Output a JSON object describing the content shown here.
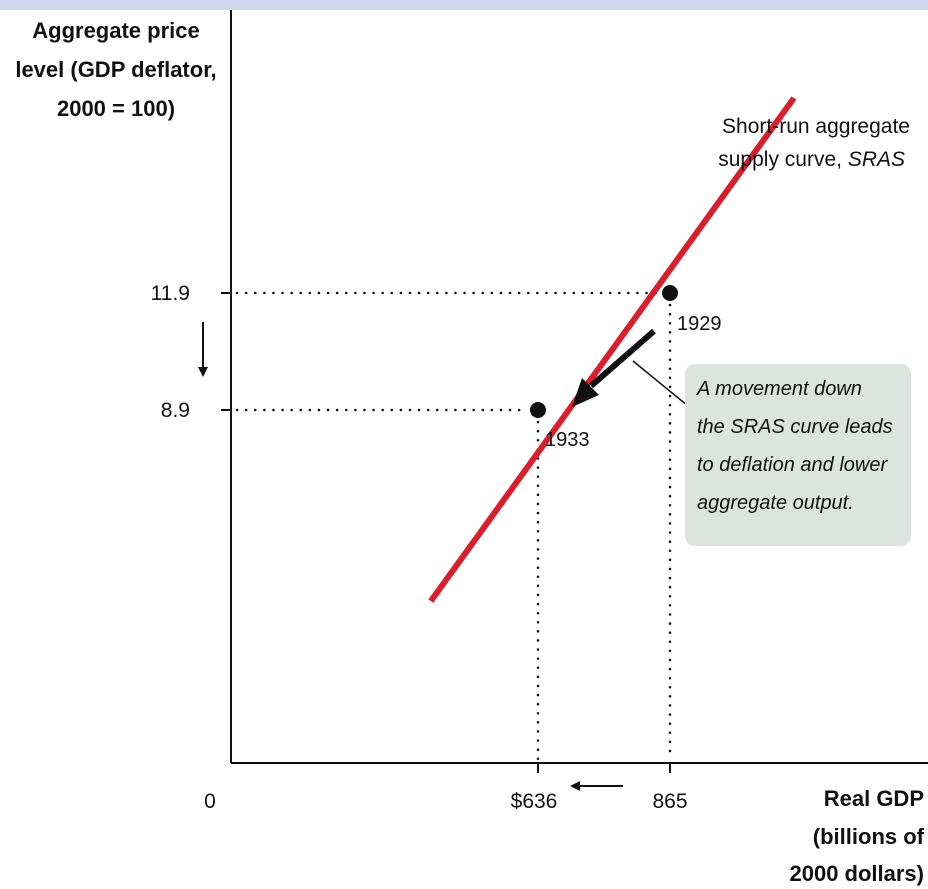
{
  "chart_data": {
    "type": "line",
    "ylabel": [
      "Aggregate price",
      "level (GDP deflator,",
      "2000 = 100)"
    ],
    "xlabel": [
      "Real GDP",
      "(billions of",
      "2000 dollars)"
    ],
    "origin_label": "0",
    "x_ticks": [
      {
        "value": 636,
        "label": "$636"
      },
      {
        "value": 865,
        "label": "865"
      }
    ],
    "y_ticks": [
      {
        "value": 8.9,
        "label": "8.9"
      },
      {
        "value": 11.9,
        "label": "11.9"
      }
    ],
    "series": [
      {
        "name": "SRAS",
        "color": "#d81f2e",
        "x": [
          450,
          1080
        ],
        "y": [
          4.0,
          16.9
        ]
      }
    ],
    "points": [
      {
        "year": "1929",
        "x": 865,
        "y": 11.9
      },
      {
        "year": "1933",
        "x": 636,
        "y": 8.9
      }
    ],
    "curve_label": {
      "line1": "Short-run aggregate",
      "line2_prefix": "supply curve, ",
      "line2_emph": "SRAS"
    },
    "callout": {
      "lines": [
        "A movement down",
        "the SRAS curve leads",
        "to deflation and lower",
        "aggregate output."
      ],
      "background": "#dde3df"
    },
    "annotations": {
      "x_shift_arrow": "from 865 to $636",
      "y_shift_arrow": "from 11.9 to 8.9"
    }
  }
}
